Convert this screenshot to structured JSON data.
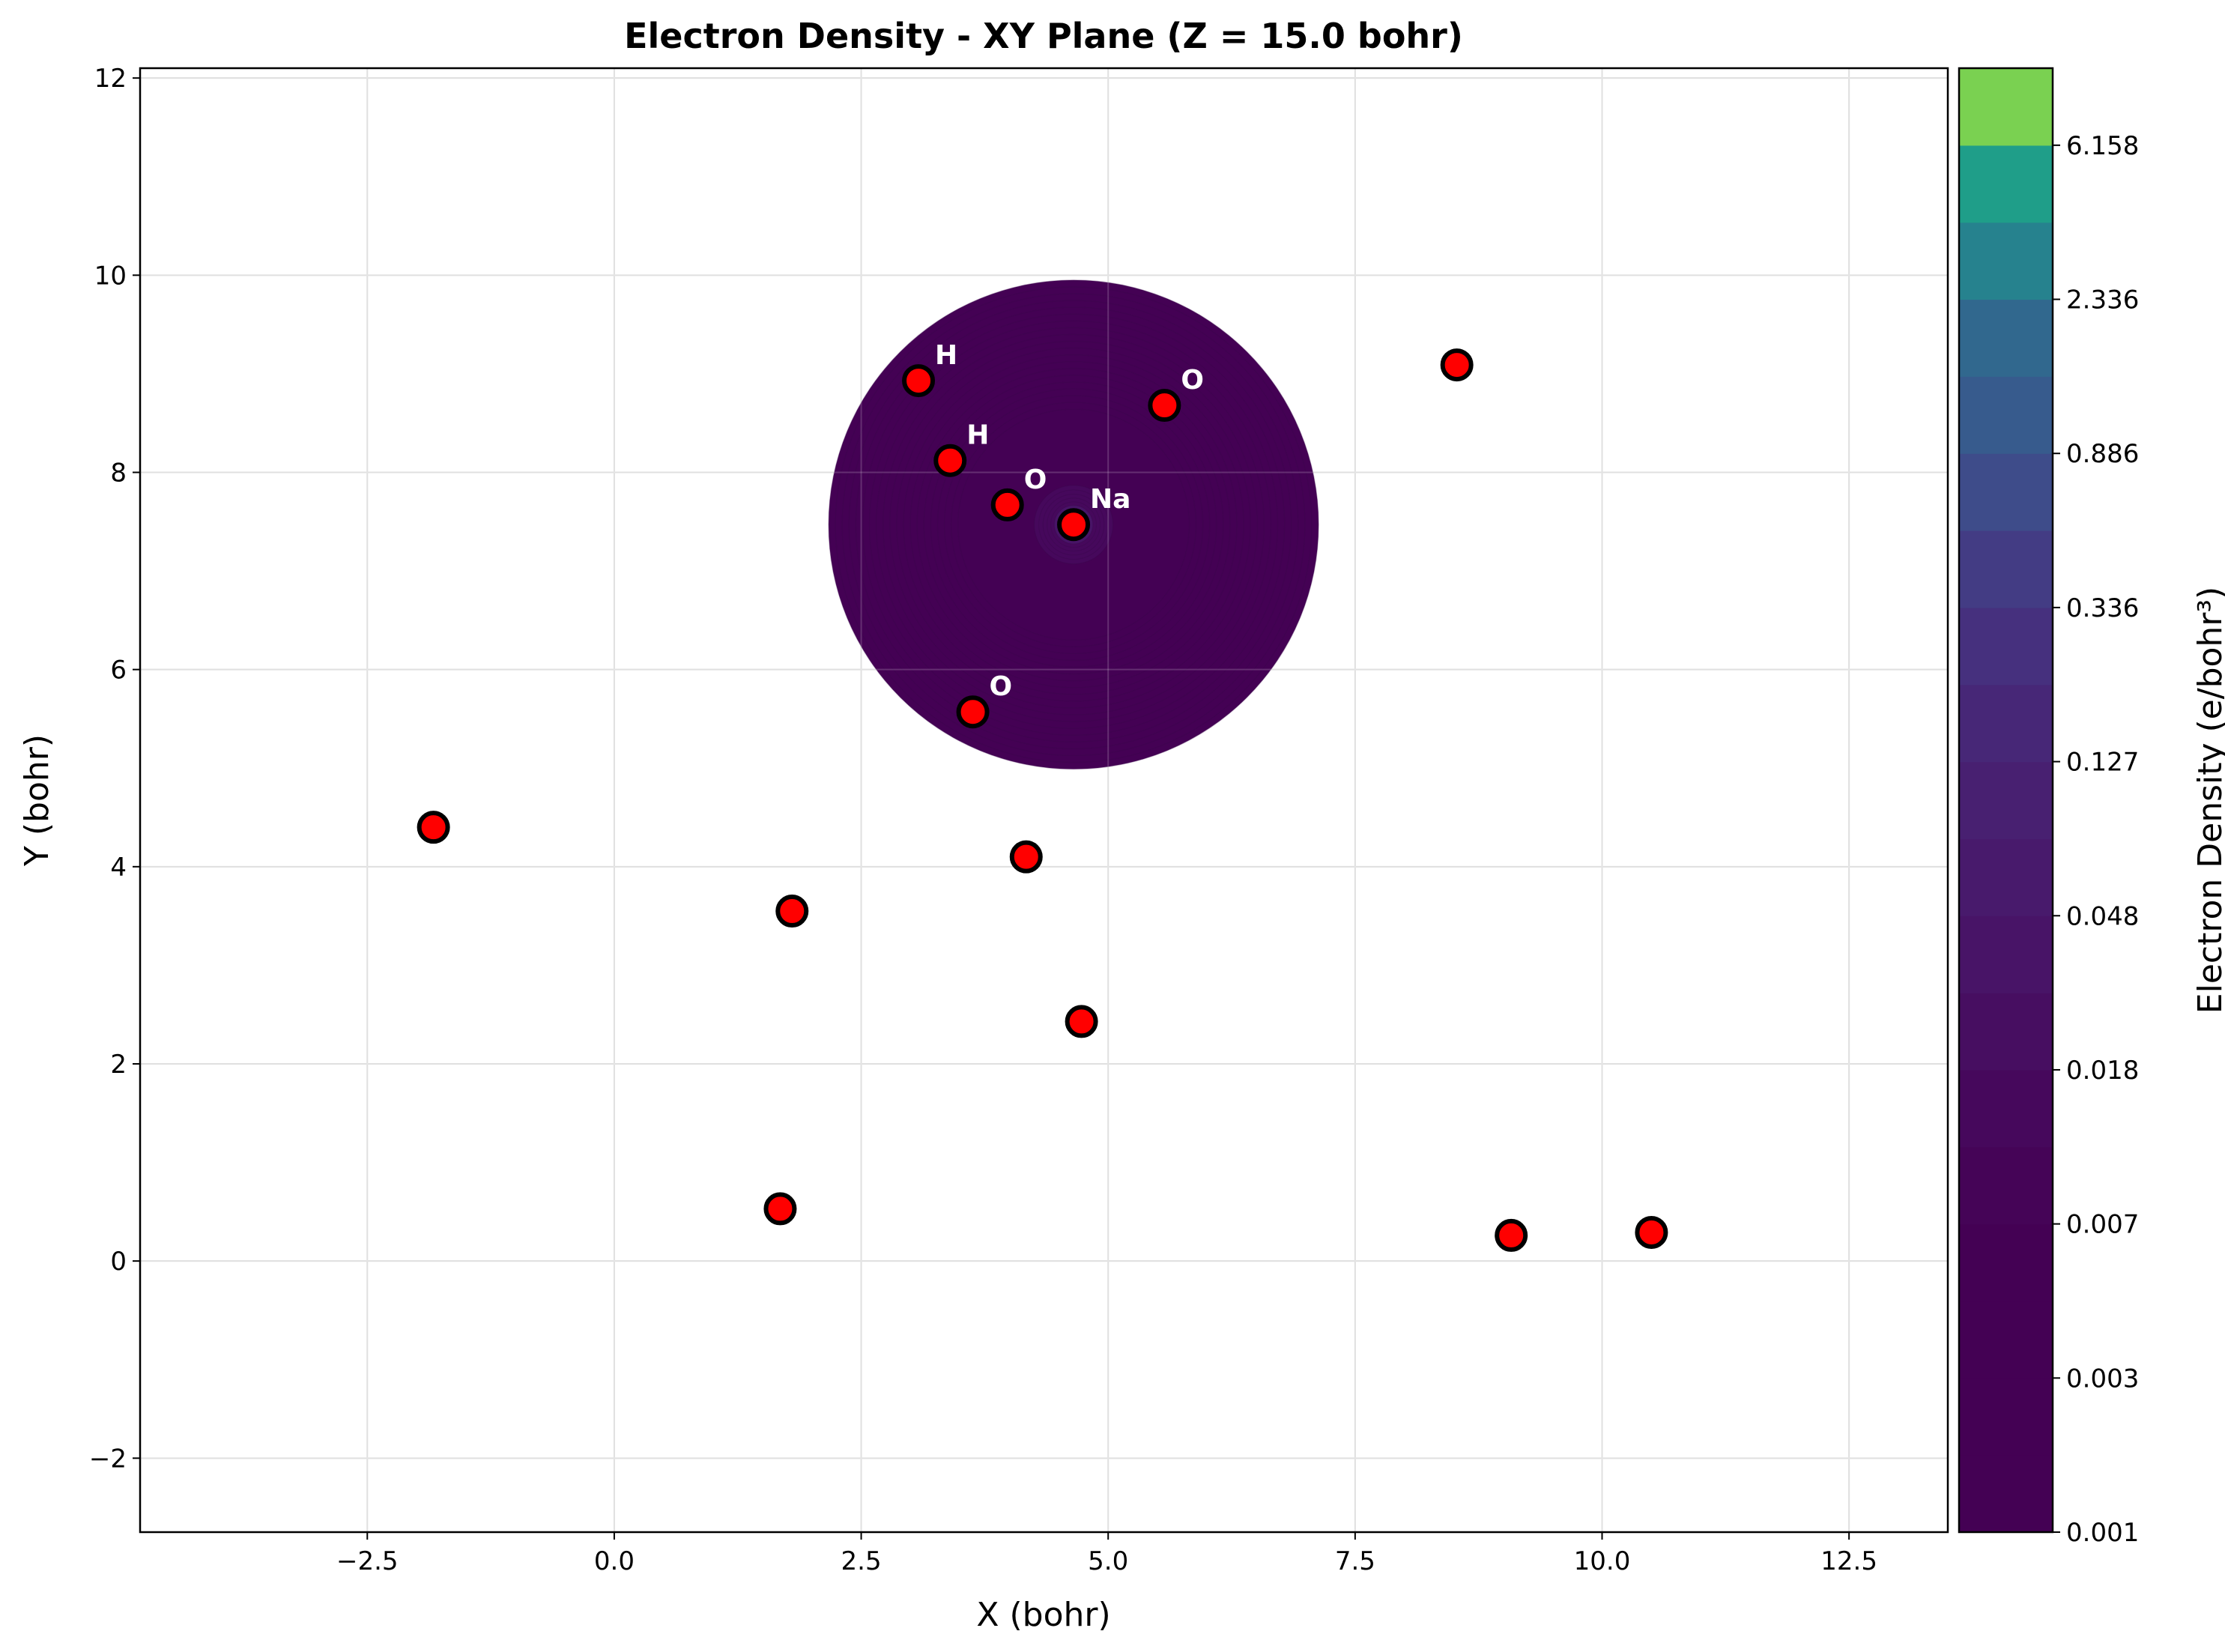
{
  "chart_data": {
    "type": "contour",
    "title": "Electron Density - XY Plane (Z = 15.0 bohr)",
    "xlabel": "X (bohr)",
    "ylabel": "Y (bohr)",
    "xlim": [
      -4.8,
      13.5
    ],
    "ylim": [
      -2.75,
      12.1
    ],
    "xticks": [
      -2.5,
      0.0,
      2.5,
      5.0,
      7.5,
      10.0,
      12.5
    ],
    "xtick_labels": [
      "−2.5",
      "0.0",
      "2.5",
      "5.0",
      "7.5",
      "10.0",
      "12.5"
    ],
    "yticks": [
      -2,
      0,
      2,
      4,
      6,
      8,
      10,
      12
    ],
    "ytick_labels": [
      "−2",
      "0",
      "2",
      "4",
      "6",
      "8",
      "10",
      "12"
    ],
    "grid": true,
    "density_region": {
      "center": [
        4.65,
        7.47
      ],
      "radius": 2.48
    },
    "atoms": [
      {
        "x": 4.65,
        "y": 7.47,
        "label": "Na"
      },
      {
        "x": 3.98,
        "y": 7.67,
        "label": "O"
      },
      {
        "x": 3.4,
        "y": 8.12,
        "label": "H"
      },
      {
        "x": 3.08,
        "y": 8.93,
        "label": "H"
      },
      {
        "x": 5.57,
        "y": 8.68,
        "label": "O"
      },
      {
        "x": 3.63,
        "y": 5.57,
        "label": "O"
      },
      {
        "x": 8.53,
        "y": 9.09,
        "label": ""
      },
      {
        "x": -1.83,
        "y": 4.4,
        "label": ""
      },
      {
        "x": 1.8,
        "y": 3.55,
        "label": ""
      },
      {
        "x": 4.17,
        "y": 4.1,
        "label": ""
      },
      {
        "x": 4.73,
        "y": 2.43,
        "label": ""
      },
      {
        "x": 1.68,
        "y": 0.53,
        "label": ""
      },
      {
        "x": 9.08,
        "y": 0.26,
        "label": ""
      },
      {
        "x": 10.5,
        "y": 0.29,
        "label": ""
      }
    ],
    "colorbar": {
      "label": "Electron Density (e/bohr³)",
      "tick_labels": [
        "0.001",
        "0.003",
        "0.007",
        "0.018",
        "0.048",
        "0.127",
        "0.336",
        "0.886",
        "2.336",
        "6.158"
      ],
      "levels": 19,
      "colors": [
        "#440154",
        "#440154",
        "#440154",
        "#440154",
        "#450457",
        "#46085c",
        "#470e61",
        "#481467",
        "#481a6c",
        "#482071",
        "#472777",
        "#46307e",
        "#433c84",
        "#3e4c8a",
        "#375b8d",
        "#31688e",
        "#26828e",
        "#1f9e89",
        "#7ad151"
      ]
    },
    "colors": {
      "atom_fill": "#ff0000",
      "atom_edge": "#000000",
      "atom_label": "#ffffff",
      "grid": "#d9d9d9"
    }
  }
}
